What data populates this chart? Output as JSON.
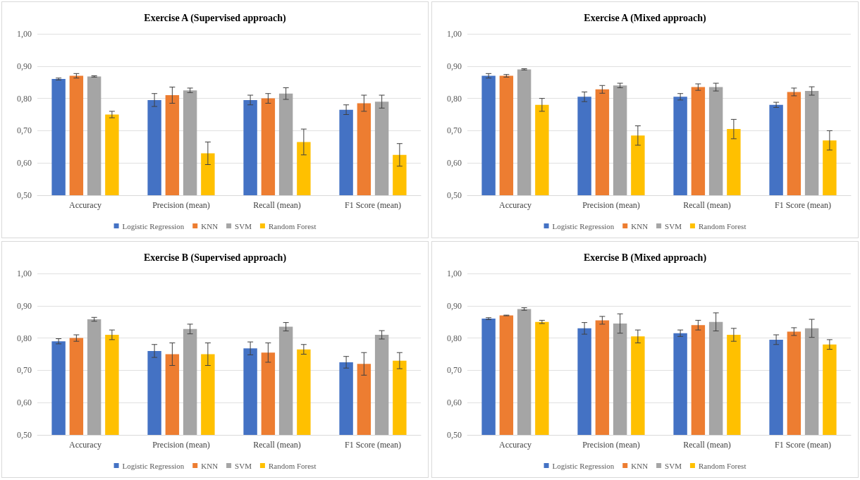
{
  "chart_data": [
    {
      "type": "bar",
      "title": "Exercise A (Supervised approach)",
      "categories": [
        "Accuracy",
        "Precision (mean)",
        "Recall (mean)",
        "F1 Score (mean)"
      ],
      "ylim": [
        0.5,
        1.0
      ],
      "yticks": [
        {
          "value": 0.5,
          "label": "0,50"
        },
        {
          "value": 0.6,
          "label": "0,60"
        },
        {
          "value": 0.7,
          "label": "0,70"
        },
        {
          "value": 0.8,
          "label": "0,80"
        },
        {
          "value": 0.9,
          "label": "0,90"
        },
        {
          "value": 1.0,
          "label": "1,00"
        }
      ],
      "grid": "y",
      "legend": "bottom",
      "series": [
        {
          "name": "Logistic Regression",
          "color": "#4472c4",
          "values": [
            0.86,
            0.795,
            0.795,
            0.765
          ],
          "errors": [
            0.003,
            0.02,
            0.015,
            0.015
          ]
        },
        {
          "name": "KNN",
          "color": "#ed7d31",
          "values": [
            0.87,
            0.81,
            0.8,
            0.785
          ],
          "errors": [
            0.007,
            0.025,
            0.015,
            0.025
          ]
        },
        {
          "name": "SVM",
          "color": "#a5a5a5",
          "values": [
            0.868,
            0.825,
            0.815,
            0.79
          ],
          "errors": [
            0.002,
            0.007,
            0.018,
            0.02
          ]
        },
        {
          "name": "Random Forest",
          "color": "#ffc000",
          "values": [
            0.75,
            0.63,
            0.665,
            0.625
          ],
          "errors": [
            0.01,
            0.035,
            0.04,
            0.035
          ]
        }
      ]
    },
    {
      "type": "bar",
      "title": "Exercise A (Mixed approach)",
      "categories": [
        "Accuracy",
        "Precision (mean)",
        "Recall (mean)",
        "F1 Score (mean)"
      ],
      "ylim": [
        0.5,
        1.0
      ],
      "yticks": [
        {
          "value": 0.5,
          "label": "0,50"
        },
        {
          "value": 0.6,
          "label": "0,60"
        },
        {
          "value": 0.7,
          "label": "0,70"
        },
        {
          "value": 0.8,
          "label": "0,80"
        },
        {
          "value": 0.9,
          "label": "0,90"
        },
        {
          "value": 1.0,
          "label": "1,00"
        }
      ],
      "grid": "y",
      "legend": "bottom",
      "series": [
        {
          "name": "Logistic Regression",
          "color": "#4472c4",
          "values": [
            0.87,
            0.805,
            0.805,
            0.78
          ],
          "errors": [
            0.007,
            0.015,
            0.01,
            0.008
          ]
        },
        {
          "name": "KNN",
          "color": "#ed7d31",
          "values": [
            0.87,
            0.828,
            0.835,
            0.82
          ],
          "errors": [
            0.004,
            0.012,
            0.01,
            0.012
          ]
        },
        {
          "name": "SVM",
          "color": "#a5a5a5",
          "values": [
            0.89,
            0.84,
            0.835,
            0.823
          ],
          "errors": [
            0.002,
            0.007,
            0.012,
            0.013
          ]
        },
        {
          "name": "Random Forest",
          "color": "#ffc000",
          "values": [
            0.78,
            0.685,
            0.705,
            0.67
          ],
          "errors": [
            0.02,
            0.03,
            0.03,
            0.03
          ]
        }
      ]
    },
    {
      "type": "bar",
      "title": "Exercise B (Supervised approach)",
      "categories": [
        "Accuracy",
        "Precision (mean)",
        "Recall (mean)",
        "F1 Score (mean)"
      ],
      "ylim": [
        0.5,
        1.0
      ],
      "yticks": [
        {
          "value": 0.5,
          "label": "0,50"
        },
        {
          "value": 0.6,
          "label": "0,60"
        },
        {
          "value": 0.7,
          "label": "0,70"
        },
        {
          "value": 0.8,
          "label": "0,80"
        },
        {
          "value": 0.9,
          "label": "0,90"
        },
        {
          "value": 1.0,
          "label": "1,00"
        }
      ],
      "grid": "y",
      "legend": "bottom",
      "series": [
        {
          "name": "Logistic Regression",
          "color": "#4472c4",
          "values": [
            0.79,
            0.76,
            0.768,
            0.725
          ],
          "errors": [
            0.008,
            0.02,
            0.02,
            0.018
          ]
        },
        {
          "name": "KNN",
          "color": "#ed7d31",
          "values": [
            0.8,
            0.75,
            0.755,
            0.72
          ],
          "errors": [
            0.01,
            0.035,
            0.03,
            0.035
          ]
        },
        {
          "name": "SVM",
          "color": "#a5a5a5",
          "values": [
            0.858,
            0.828,
            0.835,
            0.81
          ],
          "errors": [
            0.006,
            0.015,
            0.013,
            0.013
          ]
        },
        {
          "name": "Random Forest",
          "color": "#ffc000",
          "values": [
            0.81,
            0.75,
            0.765,
            0.73
          ],
          "errors": [
            0.015,
            0.035,
            0.015,
            0.025
          ]
        }
      ]
    },
    {
      "type": "bar",
      "title": "Exercise B (Mixed approach)",
      "categories": [
        "Accuracy",
        "Precision (mean)",
        "Recall (mean)",
        "F1 Score (mean)"
      ],
      "ylim": [
        0.5,
        1.0
      ],
      "yticks": [
        {
          "value": 0.5,
          "label": "0,50"
        },
        {
          "value": 0.6,
          "label": "0,60"
        },
        {
          "value": 0.7,
          "label": "0,70"
        },
        {
          "value": 0.8,
          "label": "0,80"
        },
        {
          "value": 0.9,
          "label": "0,90"
        },
        {
          "value": 1.0,
          "label": "1,00"
        }
      ],
      "grid": "y",
      "legend": "bottom",
      "series": [
        {
          "name": "Logistic Regression",
          "color": "#4472c4",
          "values": [
            0.86,
            0.83,
            0.815,
            0.795
          ],
          "errors": [
            0.003,
            0.018,
            0.01,
            0.015
          ]
        },
        {
          "name": "KNN",
          "color": "#ed7d31",
          "values": [
            0.87,
            0.855,
            0.84,
            0.82
          ],
          "errors": [
            0.001,
            0.012,
            0.015,
            0.012
          ]
        },
        {
          "name": "SVM",
          "color": "#a5a5a5",
          "values": [
            0.89,
            0.845,
            0.85,
            0.83
          ],
          "errors": [
            0.004,
            0.03,
            0.028,
            0.028
          ]
        },
        {
          "name": "Random Forest",
          "color": "#ffc000",
          "values": [
            0.85,
            0.805,
            0.81,
            0.78
          ],
          "errors": [
            0.005,
            0.02,
            0.02,
            0.015
          ]
        }
      ]
    }
  ]
}
